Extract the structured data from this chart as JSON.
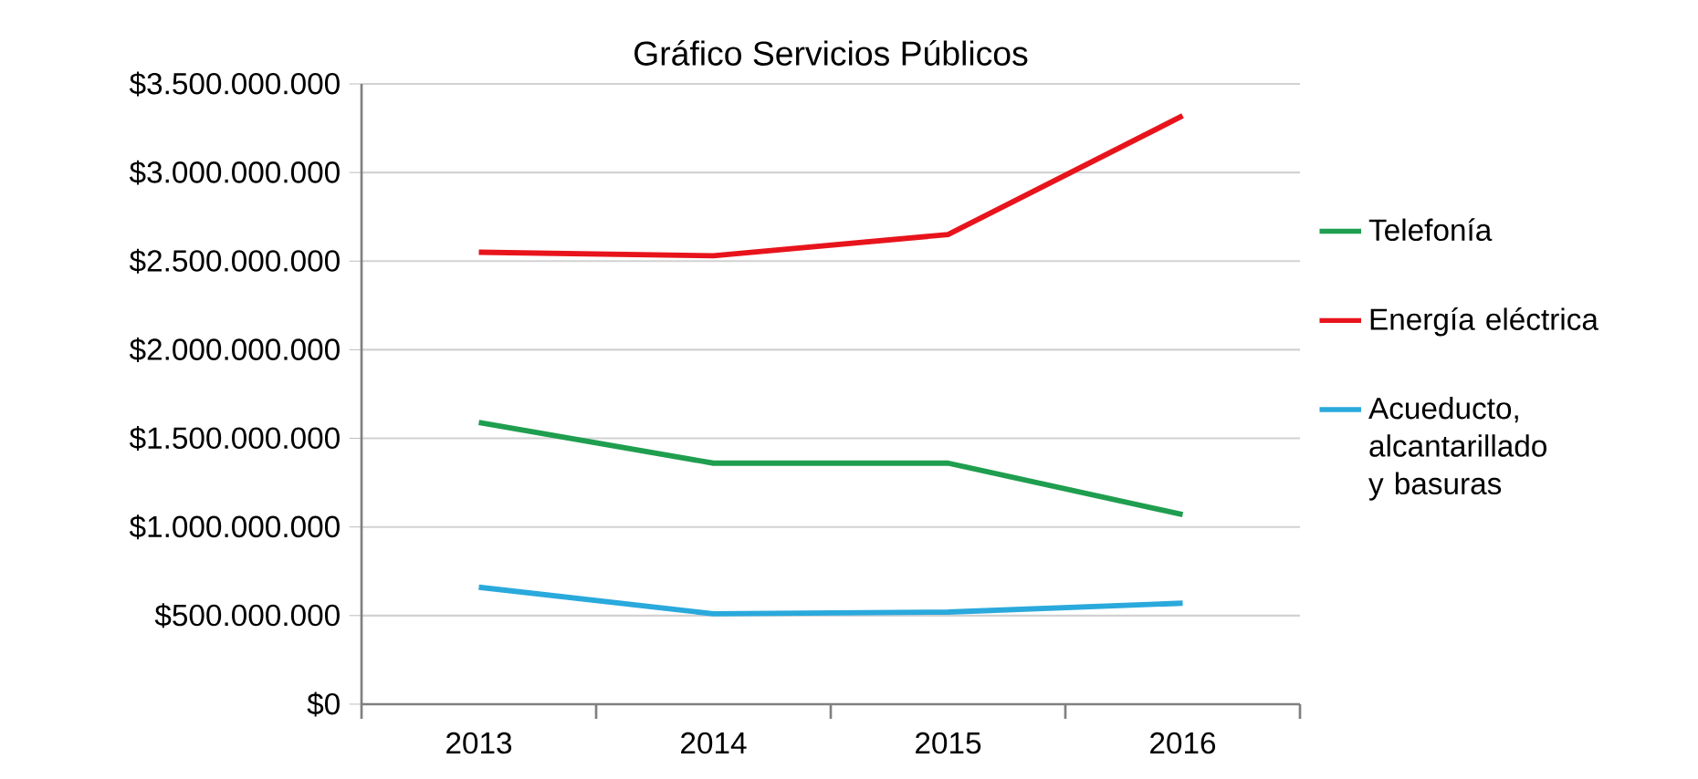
{
  "chart_data": {
    "type": "line",
    "title": "Gráfico Servicios Públicos",
    "categories": [
      "2013",
      "2014",
      "2015",
      "2016"
    ],
    "series": [
      {
        "name": "Telefonía",
        "color": "#1f9e4f",
        "values": [
          1590000000,
          1360000000,
          1360000000,
          1070000000
        ]
      },
      {
        "name": "Energía eléctrica",
        "color": "#e8141c",
        "values": [
          2550000000,
          2530000000,
          2650000000,
          3320000000
        ]
      },
      {
        "name": "Acueducto, alcantarillado y basuras",
        "color": "#2aa9dc",
        "values": [
          660000000,
          510000000,
          520000000,
          570000000
        ]
      }
    ],
    "ylim": [
      0,
      3500000000
    ],
    "yticks": [
      {
        "value": 0,
        "label": "$0"
      },
      {
        "value": 500000000,
        "label": "$500.000.000"
      },
      {
        "value": 1000000000,
        "label": "$1.000.000.000"
      },
      {
        "value": 1500000000,
        "label": "$1.500.000.000"
      },
      {
        "value": 2000000000,
        "label": "$2.000.000.000"
      },
      {
        "value": 2500000000,
        "label": "$2.500.000.000"
      },
      {
        "value": 3000000000,
        "label": "$3.000.000.000"
      },
      {
        "value": 3500000000,
        "label": "$3.500.000.000"
      }
    ],
    "grid": "y",
    "legend": "right",
    "marker": "none",
    "line_style": "solid"
  }
}
